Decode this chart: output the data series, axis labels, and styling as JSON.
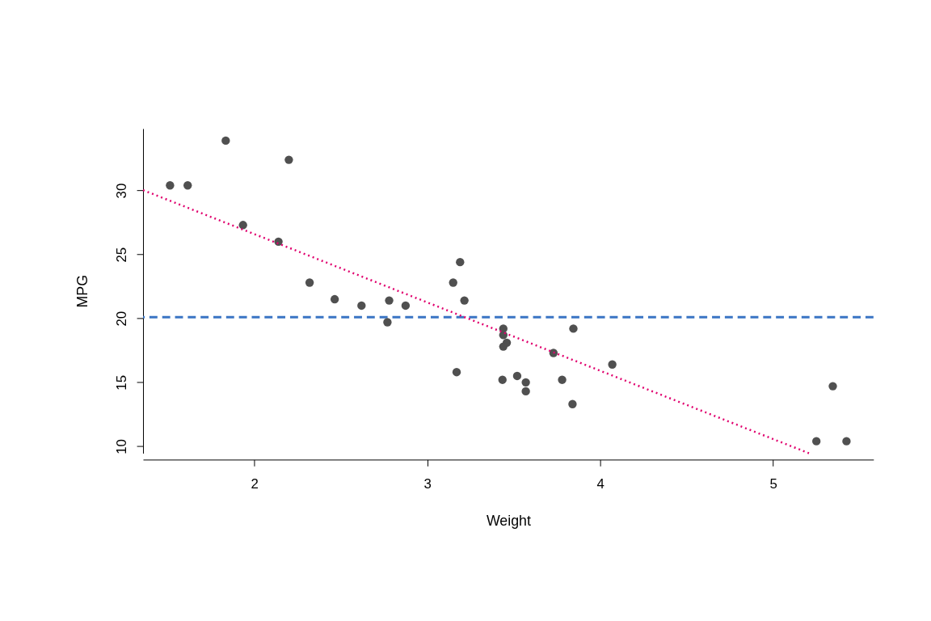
{
  "chart_data": {
    "type": "scatter",
    "xlabel": "Weight",
    "ylabel": "MPG",
    "xlim": [
      1.357,
      5.58
    ],
    "ylim": [
      9.46,
      34.84
    ],
    "xticks": [
      2,
      3,
      4,
      5
    ],
    "yticks": [
      10,
      15,
      20,
      25,
      30
    ],
    "grid": false,
    "series": [
      {
        "color": "#505050",
        "marker": "circle",
        "x": [
          2.62,
          2.875,
          2.32,
          3.215,
          3.44,
          3.46,
          3.57,
          3.19,
          3.15,
          3.44,
          3.44,
          4.07,
          3.73,
          3.78,
          5.25,
          5.424,
          5.345,
          2.2,
          1.615,
          1.835,
          2.465,
          3.52,
          3.435,
          3.84,
          3.845,
          1.935,
          2.14,
          1.513,
          3.17,
          2.77,
          3.57,
          2.78
        ],
        "values": [
          21.0,
          21.0,
          22.8,
          21.4,
          18.7,
          18.1,
          14.3,
          24.4,
          22.8,
          19.2,
          17.8,
          16.4,
          17.3,
          15.2,
          10.4,
          10.4,
          14.7,
          32.4,
          30.4,
          33.9,
          21.5,
          15.5,
          15.2,
          13.3,
          19.2,
          27.3,
          26.0,
          30.4,
          15.8,
          19.7,
          15.0,
          21.4
        ]
      },
      {
        "type": "line",
        "color": "#e0006e",
        "line_style": "dotted",
        "x": [
          1.357,
          5.207
        ],
        "values": [
          30.03,
          9.46
        ]
      }
    ],
    "ref_lines": [
      {
        "axis": "y",
        "value": 20.09,
        "color": "#3a75c4",
        "line_style": "dashed"
      }
    ]
  }
}
